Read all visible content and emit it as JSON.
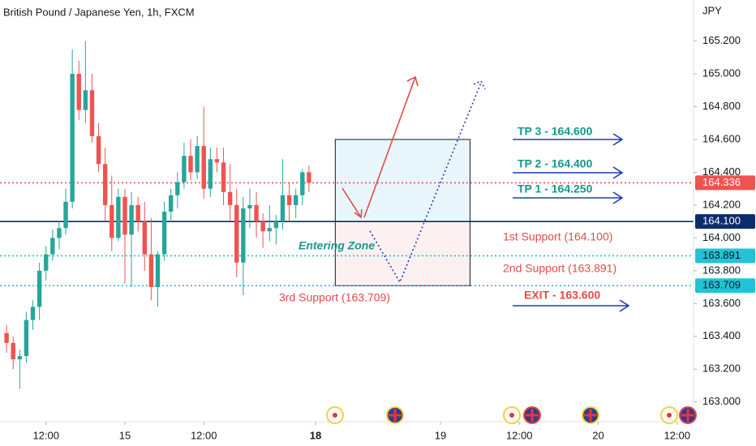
{
  "chart_data": {
    "type": "candlestick",
    "title": "British Pound / Japanese Yen, 1h, FXCM",
    "currency": "JPY",
    "x": [
      0,
      1,
      2,
      3,
      4,
      5,
      6,
      7,
      8,
      9,
      10,
      11,
      12,
      13,
      14,
      15,
      16,
      17,
      18,
      19,
      20,
      21,
      22,
      23,
      24,
      25,
      26,
      27,
      28,
      29,
      30,
      31,
      32,
      33,
      34,
      35,
      36,
      37,
      38,
      39,
      40,
      41,
      42,
      43,
      44,
      45,
      46
    ],
    "open": [
      163.42,
      163.36,
      163.26,
      163.28,
      163.5,
      163.58,
      163.8,
      163.9,
      164.0,
      164.06,
      164.22,
      165.0,
      164.78,
      164.9,
      164.62,
      164.45,
      164.2,
      164.0,
      164.25,
      164.02,
      164.2,
      164.1,
      163.9,
      163.7,
      163.9,
      164.16,
      164.26,
      164.34,
      164.5,
      164.4,
      164.56,
      164.3,
      164.48,
      164.46,
      164.28,
      164.2,
      163.85,
      164.18,
      164.2,
      164.1,
      164.04,
      164.06,
      164.1,
      164.26,
      164.2,
      164.26,
      164.4
    ],
    "high": [
      163.47,
      163.4,
      163.32,
      163.55,
      163.62,
      163.85,
      163.95,
      164.05,
      164.1,
      164.3,
      165.15,
      165.08,
      165.2,
      165.0,
      164.7,
      164.55,
      164.38,
      164.3,
      164.3,
      164.28,
      164.25,
      164.22,
      164.12,
      163.92,
      164.22,
      164.3,
      164.4,
      164.58,
      164.6,
      164.62,
      164.8,
      164.55,
      164.55,
      164.55,
      164.45,
      164.3,
      164.25,
      164.3,
      164.28,
      164.15,
      164.2,
      164.14,
      164.48,
      164.34,
      164.3,
      164.42,
      164.44
    ],
    "low": [
      163.3,
      163.2,
      163.08,
      163.24,
      163.44,
      163.5,
      163.74,
      163.86,
      163.93,
      164.02,
      164.18,
      164.72,
      164.7,
      164.58,
      164.4,
      164.1,
      163.92,
      163.98,
      163.72,
      163.7,
      164.04,
      163.8,
      163.62,
      163.58,
      163.86,
      164.1,
      164.18,
      164.3,
      164.35,
      164.36,
      164.24,
      164.25,
      164.4,
      164.2,
      164.1,
      163.76,
      163.65,
      164.06,
      164.0,
      163.94,
      163.98,
      163.96,
      164.05,
      164.1,
      164.12,
      164.2,
      164.28
    ],
    "close": [
      163.36,
      163.26,
      163.28,
      163.5,
      163.58,
      163.8,
      163.9,
      164.0,
      164.06,
      164.22,
      165.0,
      164.78,
      164.9,
      164.62,
      164.45,
      164.2,
      164.0,
      164.25,
      164.02,
      164.2,
      164.1,
      163.9,
      163.7,
      163.9,
      164.16,
      164.26,
      164.34,
      164.5,
      164.4,
      164.56,
      164.3,
      164.48,
      164.46,
      164.28,
      164.2,
      163.85,
      164.18,
      164.2,
      164.1,
      164.04,
      164.06,
      164.1,
      164.26,
      164.2,
      164.26,
      164.4,
      164.336
    ],
    "up_color": "#26a69a",
    "down_color": "#ef5350",
    "xlim": [
      -1,
      104.5
    ],
    "xticks": [
      {
        "value": 6,
        "label": "12:00"
      },
      {
        "value": 18,
        "label": "15"
      },
      {
        "value": 30,
        "label": "12:00"
      },
      {
        "value": 47,
        "label": "18"
      },
      {
        "value": 66,
        "label": "19"
      },
      {
        "value": 78,
        "label": "12:00"
      },
      {
        "value": 90,
        "label": "20"
      },
      {
        "value": 102,
        "label": "12:00"
      }
    ],
    "ylim": [
      162.88,
      165.45
    ],
    "yticks": [
      {
        "value": 163.0,
        "label": "163.000"
      },
      {
        "value": 163.2,
        "label": "163.200"
      },
      {
        "value": 163.4,
        "label": "163.400"
      },
      {
        "value": 163.6,
        "label": "163.600"
      },
      {
        "value": 163.8,
        "label": "163.800"
      },
      {
        "value": 164.0,
        "label": "164.000"
      },
      {
        "value": 164.2,
        "label": "164.200"
      },
      {
        "value": 164.4,
        "label": "164.400"
      },
      {
        "value": 164.6,
        "label": "164.600"
      },
      {
        "value": 164.8,
        "label": "164.800"
      },
      {
        "value": 165.0,
        "label": "165.000"
      },
      {
        "value": 165.2,
        "label": "165.200"
      }
    ],
    "grid": false,
    "price_lines": [
      {
        "value": 164.336,
        "color": "#ef5350",
        "style": "dotted",
        "text_color": "#ffffff"
      },
      {
        "value": 164.1,
        "label": "164.100",
        "color": "#0d2c6b",
        "style": "solid",
        "text_color": "#ffffff"
      },
      {
        "value": 163.891,
        "color": "#22c3d6",
        "style": "dotted",
        "text_color": "#131722"
      },
      {
        "value": 163.709,
        "color": "#22c3d6",
        "style": "dotted",
        "text_color": "#131722"
      }
    ],
    "zones": [
      {
        "x": [
          50,
          70.5
        ],
        "top": 164.6,
        "bottom": 164.1,
        "color": "#e8f6fb"
      },
      {
        "x": [
          50,
          70.5
        ],
        "top": 164.1,
        "bottom": 163.709,
        "color": "#fcf0f0"
      }
    ],
    "annotations": [
      "TP 3 - 164.600",
      "TP 2 - 164.400",
      "TP 1 - 164.250",
      "1st Support (164.100)",
      "Entering Zone",
      "2nd Support (163.891)",
      "3rd Support (163.709)",
      "EXIT - 163.600"
    ]
  }
}
